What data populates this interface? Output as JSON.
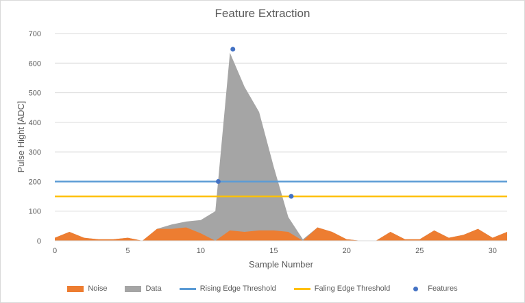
{
  "chart_data": {
    "type": "area",
    "title": "Feature Extraction",
    "xlabel": "Sample Number",
    "ylabel": "Pulse Hight [ADC]",
    "xlim": [
      0,
      31
    ],
    "ylim": [
      0,
      700
    ],
    "xticks": [
      0,
      5,
      10,
      15,
      20,
      25,
      30
    ],
    "yticks": [
      0,
      100,
      200,
      300,
      400,
      500,
      600,
      700
    ],
    "grid": true,
    "legend_position": "bottom",
    "x": [
      0,
      1,
      2,
      3,
      4,
      5,
      6,
      7,
      8,
      9,
      10,
      11,
      12,
      13,
      14,
      15,
      16,
      17,
      18,
      19,
      20,
      21,
      22,
      23,
      24,
      25,
      26,
      27,
      28,
      29,
      30,
      31
    ],
    "series": [
      {
        "name": "Noise",
        "kind": "area",
        "color": "#ed7d31",
        "values": [
          10,
          30,
          10,
          5,
          5,
          10,
          0,
          40,
          40,
          45,
          25,
          0,
          35,
          30,
          35,
          35,
          30,
          0,
          45,
          30,
          5,
          0,
          0,
          30,
          5,
          5,
          35,
          10,
          20,
          40,
          10,
          30
        ]
      },
      {
        "name": "Data",
        "kind": "area",
        "color": "#a5a5a5",
        "values": [
          10,
          30,
          10,
          5,
          5,
          10,
          0,
          40,
          55,
          65,
          70,
          100,
          635,
          520,
          435,
          250,
          80,
          5,
          45,
          30,
          5,
          0,
          0,
          30,
          5,
          5,
          35,
          10,
          20,
          40,
          10,
          30
        ]
      },
      {
        "name": "Rising Edge Threshold",
        "kind": "line",
        "color": "#5b9bd5",
        "values": [
          200,
          200,
          200,
          200,
          200,
          200,
          200,
          200,
          200,
          200,
          200,
          200,
          200,
          200,
          200,
          200,
          200,
          200,
          200,
          200,
          200,
          200,
          200,
          200,
          200,
          200,
          200,
          200,
          200,
          200,
          200,
          200
        ]
      },
      {
        "name": "Faling Edge Threshold",
        "kind": "line",
        "color": "#ffc000",
        "values": [
          150,
          150,
          150,
          150,
          150,
          150,
          150,
          150,
          150,
          150,
          150,
          150,
          150,
          150,
          150,
          150,
          150,
          150,
          150,
          150,
          150,
          150,
          150,
          150,
          150,
          150,
          150,
          150,
          150,
          150,
          150,
          150
        ]
      },
      {
        "name": "Features",
        "kind": "scatter",
        "color": "#4472c4",
        "points": [
          [
            11.2,
            200
          ],
          [
            12.2,
            647
          ],
          [
            16.2,
            150
          ]
        ]
      }
    ]
  }
}
